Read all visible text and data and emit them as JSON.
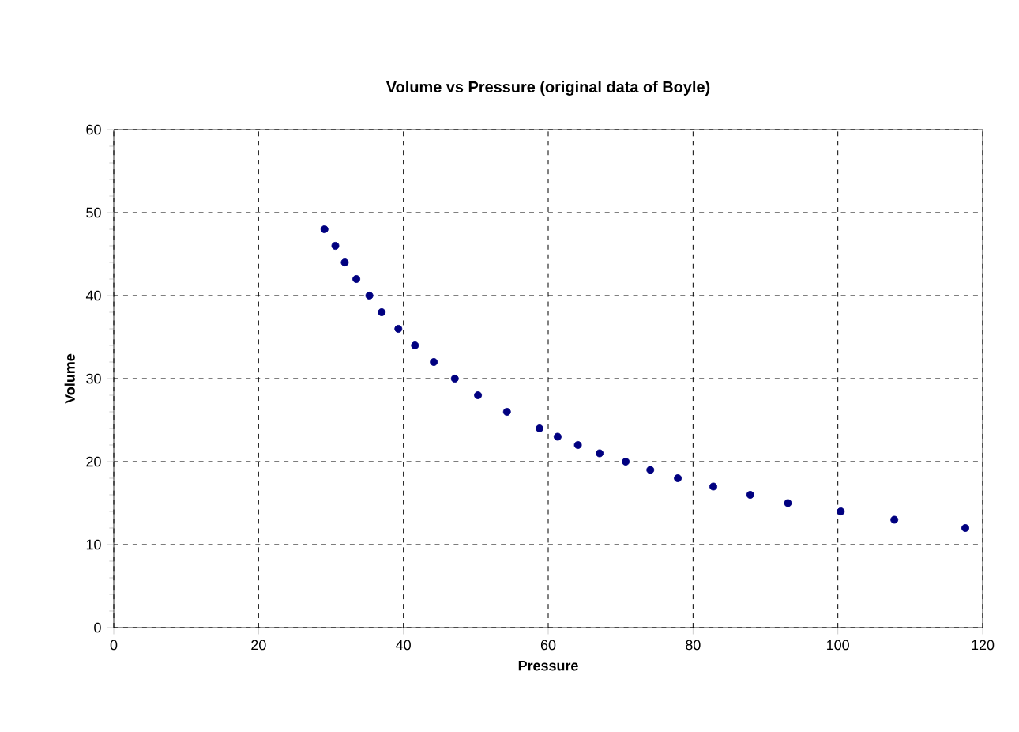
{
  "chart_data": {
    "type": "scatter",
    "title": "Volume vs Pressure (original data of Boyle)",
    "xlabel": "Pressure",
    "ylabel": "Volume",
    "x": [
      29.1,
      30.6,
      31.9,
      33.5,
      35.3,
      37.0,
      39.3,
      41.6,
      44.2,
      47.1,
      50.3,
      54.3,
      58.8,
      61.3,
      64.1,
      67.1,
      70.7,
      74.1,
      77.9,
      82.8,
      87.9,
      93.1,
      100.4,
      107.8,
      117.6
    ],
    "series": [
      {
        "color": "#000080",
        "values": [
          48,
          46,
          44,
          42,
          40,
          38,
          36,
          34,
          32,
          30,
          28,
          26,
          24,
          23,
          22,
          21,
          20,
          19,
          18,
          17,
          16,
          15,
          14,
          13,
          12
        ]
      }
    ],
    "xlim": [
      0,
      120
    ],
    "ylim": [
      0,
      60
    ],
    "xticks": [
      0,
      20,
      40,
      60,
      80,
      100,
      120
    ],
    "yticks": [
      0,
      10,
      20,
      30,
      40,
      50,
      60
    ],
    "grid": true
  }
}
